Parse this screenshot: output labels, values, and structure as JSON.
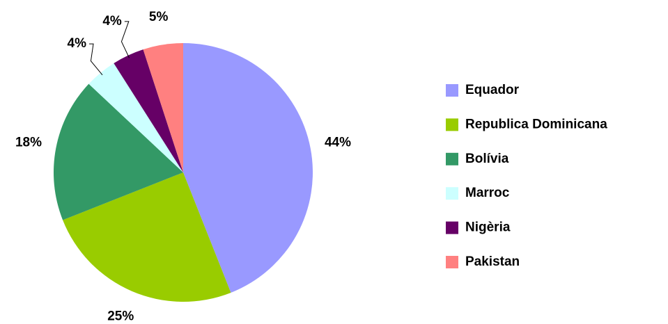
{
  "chart_data": {
    "type": "pie",
    "categories": [
      "Equador",
      "Republica Dominicana",
      "Bolívia",
      "Marroc",
      "Nigèria",
      "Pakistan"
    ],
    "values": [
      44,
      25,
      18,
      4,
      4,
      5
    ],
    "value_labels": [
      "44%",
      "25%",
      "18%",
      "4%",
      "4%",
      "5%"
    ],
    "colors": [
      "#9999ff",
      "#99cc00",
      "#339966",
      "#ccffff",
      "#660066",
      "#ff8080"
    ],
    "legend": "right"
  }
}
